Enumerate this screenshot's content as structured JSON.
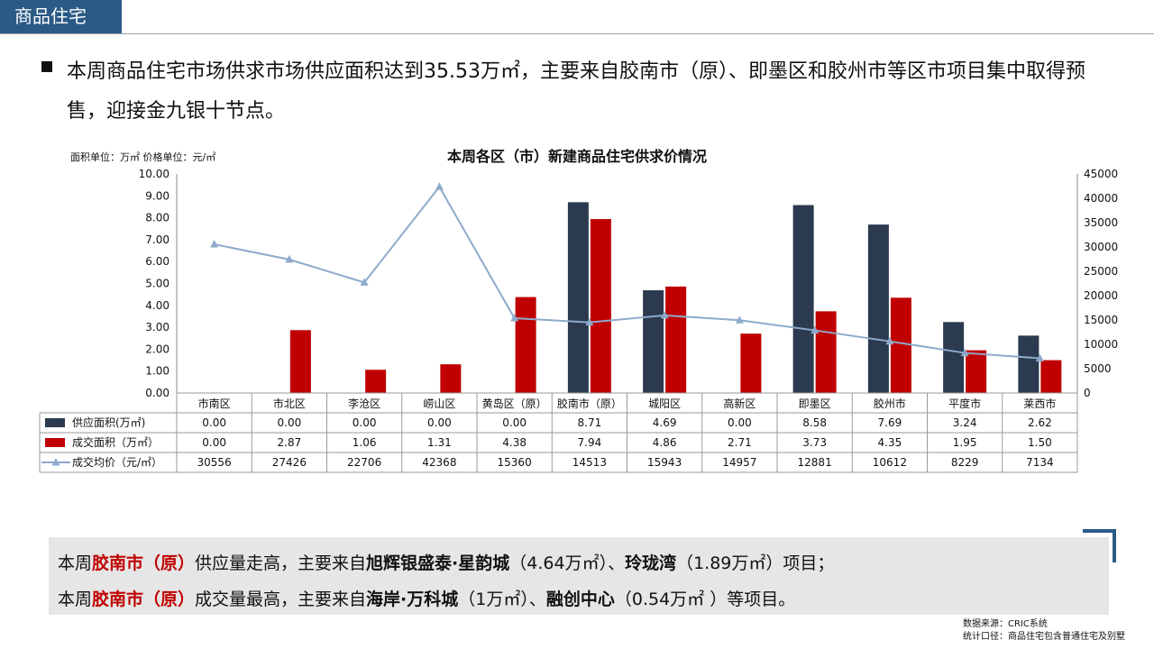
{
  "header": {
    "title": "商品住宅"
  },
  "intro": {
    "text": "本周商品住宅市场供求市场供应面积达到35.53万㎡，主要来自胶南市（原）、即墨区和胶州市等区市项目集中取得预售，迎接金九银十节点。"
  },
  "chart_data": {
    "type": "bar",
    "title": "本周各区（市）新建商品住宅供求价情况",
    "units_note": "面积单位：万㎡ 价格单位：元/㎡",
    "categories": [
      "市南区",
      "市北区",
      "李沧区",
      "崂山区",
      "黄岛区（原）",
      "胶南市（原）",
      "城阳区",
      "高新区",
      "即墨区",
      "胶州市",
      "平度市",
      "莱西市"
    ],
    "left_axis": {
      "min": 0,
      "max": 10,
      "ticks": [
        "10.00",
        "9.00",
        "8.00",
        "7.00",
        "6.00",
        "5.00",
        "4.00",
        "3.00",
        "2.00",
        "1.00",
        "0.00"
      ]
    },
    "right_axis": {
      "min": 0,
      "max": 45000,
      "ticks": [
        "45000",
        "40000",
        "35000",
        "30000",
        "25000",
        "20000",
        "15000",
        "10000",
        "5000",
        "0"
      ]
    },
    "grid": false,
    "legend": "table",
    "series": [
      {
        "name": "供应面积(万㎡)",
        "type": "bar",
        "axis": "left",
        "color": "#2b3a4e",
        "values": [
          0.0,
          0.0,
          0.0,
          0.0,
          0.0,
          8.71,
          4.69,
          0.0,
          8.58,
          7.69,
          3.24,
          2.62
        ],
        "labels": [
          "0.00",
          "0.00",
          "0.00",
          "0.00",
          "0.00",
          "8.71",
          "4.69",
          "0.00",
          "8.58",
          "7.69",
          "3.24",
          "2.62"
        ]
      },
      {
        "name": "成交面积（万㎡）",
        "type": "bar",
        "axis": "left",
        "color": "#c00000",
        "values": [
          0.0,
          2.87,
          1.06,
          1.31,
          4.38,
          7.94,
          4.86,
          2.71,
          3.73,
          4.35,
          1.95,
          1.5
        ],
        "labels": [
          "0.00",
          "2.87",
          "1.06",
          "1.31",
          "4.38",
          "7.94",
          "4.86",
          "2.71",
          "3.73",
          "4.35",
          "1.95",
          "1.50"
        ]
      },
      {
        "name": "成交均价（元/㎡）",
        "type": "line",
        "axis": "right",
        "color": "#8eaacb",
        "values": [
          30556,
          27426,
          22706,
          42368,
          15360,
          14513,
          15943,
          14957,
          12881,
          10612,
          8229,
          7134
        ],
        "labels": [
          "30556",
          "27426",
          "22706",
          "42368",
          "15360",
          "14513",
          "15943",
          "14957",
          "12881",
          "10612",
          "8229",
          "7134"
        ]
      }
    ]
  },
  "callout": {
    "line1": {
      "p1": "本周",
      "city": "胶南市（原）",
      "p2": "供应量走高，主要来自",
      "proj1": "旭辉银盛泰·星韵城",
      "p3": "（4.64万㎡）、",
      "proj2": "玲珑湾",
      "p4": "（1.89万㎡）项目；"
    },
    "line2": {
      "p1": "本周",
      "city": "胶南市（原）",
      "p2": "成交量最高，主要来自",
      "proj1": "海岸·万科城",
      "p3": "（1万㎡）、",
      "proj2": "融创中心",
      "p4": "（0.54万㎡ ）等项目。"
    }
  },
  "source": {
    "line1": "数据来源：CRIC系统",
    "line2": "统计口径：商品住宅包含普通住宅及别墅"
  },
  "colors": {
    "header": "#2b5a86",
    "supply": "#2b3a4e",
    "deal": "#c00000",
    "price": "#8eaacb",
    "callout_bg": "#e6e6e6"
  }
}
